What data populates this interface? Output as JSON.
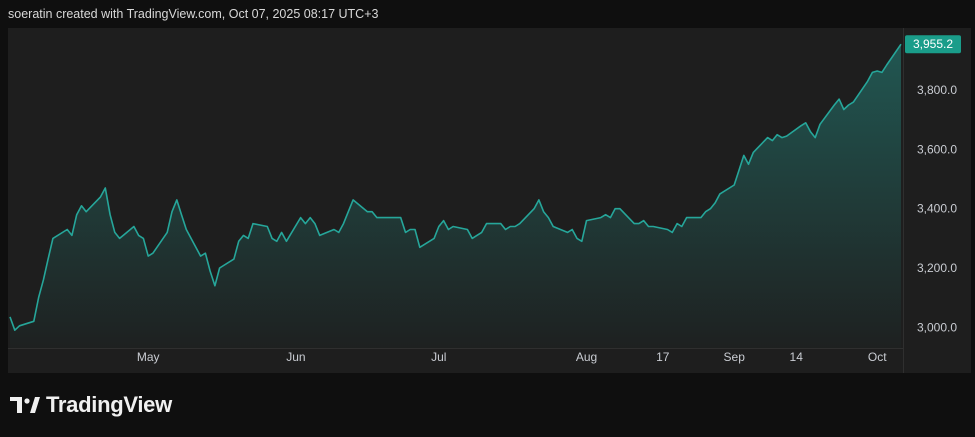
{
  "header": {
    "attribution": "soeratin created with TradingView.com, Oct 07, 2025 08:17 UTC+3"
  },
  "brand": {
    "name": "TradingView",
    "logo_icon": "tradingview-logo-icon"
  },
  "colors": {
    "line": "#26a69a",
    "price_label_bg": "#1a9d8a",
    "plot_bg": "#1e1e1e",
    "page_bg": "#0f0f0f"
  },
  "chart_data": {
    "type": "area",
    "ylim": [
      2930,
      4010
    ],
    "y_ticks": [
      {
        "value": 3000,
        "label": "3,000.0"
      },
      {
        "value": 3200,
        "label": "3,200.0"
      },
      {
        "value": 3400,
        "label": "3,400.0"
      },
      {
        "value": 3600,
        "label": "3,600.0"
      },
      {
        "value": 3800,
        "label": "3,800.0"
      }
    ],
    "x_ticks": [
      {
        "date": "2025-05-01",
        "label": "May"
      },
      {
        "date": "2025-06-01",
        "label": "Jun"
      },
      {
        "date": "2025-07-01",
        "label": "Jul"
      },
      {
        "date": "2025-08-01",
        "label": "Aug"
      },
      {
        "date": "2025-08-17",
        "label": "17"
      },
      {
        "date": "2025-09-01",
        "label": "Sep"
      },
      {
        "date": "2025-09-14",
        "label": "14"
      },
      {
        "date": "2025-10-01",
        "label": "Oct"
      }
    ],
    "last_price": {
      "value": 3955.2,
      "label": "3,955.2"
    },
    "series": [
      {
        "points": [
          [
            "2025-04-02",
            3035
          ],
          [
            "2025-04-03",
            2990
          ],
          [
            "2025-04-04",
            3005
          ],
          [
            "2025-04-07",
            3020
          ],
          [
            "2025-04-08",
            3100
          ],
          [
            "2025-04-09",
            3160
          ],
          [
            "2025-04-10",
            3230
          ],
          [
            "2025-04-11",
            3300
          ],
          [
            "2025-04-14",
            3330
          ],
          [
            "2025-04-15",
            3310
          ],
          [
            "2025-04-16",
            3380
          ],
          [
            "2025-04-17",
            3410
          ],
          [
            "2025-04-18",
            3390
          ],
          [
            "2025-04-21",
            3440
          ],
          [
            "2025-04-22",
            3470
          ],
          [
            "2025-04-23",
            3380
          ],
          [
            "2025-04-24",
            3320
          ],
          [
            "2025-04-25",
            3300
          ],
          [
            "2025-04-28",
            3340
          ],
          [
            "2025-04-29",
            3310
          ],
          [
            "2025-04-30",
            3300
          ],
          [
            "2025-05-01",
            3240
          ],
          [
            "2025-05-02",
            3250
          ],
          [
            "2025-05-05",
            3320
          ],
          [
            "2025-05-06",
            3390
          ],
          [
            "2025-05-07",
            3430
          ],
          [
            "2025-05-08",
            3380
          ],
          [
            "2025-05-09",
            3330
          ],
          [
            "2025-05-12",
            3240
          ],
          [
            "2025-05-13",
            3250
          ],
          [
            "2025-05-14",
            3190
          ],
          [
            "2025-05-15",
            3140
          ],
          [
            "2025-05-16",
            3200
          ],
          [
            "2025-05-19",
            3230
          ],
          [
            "2025-05-20",
            3290
          ],
          [
            "2025-05-21",
            3310
          ],
          [
            "2025-05-22",
            3300
          ],
          [
            "2025-05-23",
            3350
          ],
          [
            "2025-05-26",
            3340
          ],
          [
            "2025-05-27",
            3300
          ],
          [
            "2025-05-28",
            3290
          ],
          [
            "2025-05-29",
            3320
          ],
          [
            "2025-05-30",
            3290
          ],
          [
            "2025-06-02",
            3370
          ],
          [
            "2025-06-03",
            3350
          ],
          [
            "2025-06-04",
            3370
          ],
          [
            "2025-06-05",
            3350
          ],
          [
            "2025-06-06",
            3310
          ],
          [
            "2025-06-09",
            3330
          ],
          [
            "2025-06-10",
            3320
          ],
          [
            "2025-06-11",
            3350
          ],
          [
            "2025-06-12",
            3390
          ],
          [
            "2025-06-13",
            3430
          ],
          [
            "2025-06-16",
            3390
          ],
          [
            "2025-06-17",
            3390
          ],
          [
            "2025-06-18",
            3370
          ],
          [
            "2025-06-19",
            3370
          ],
          [
            "2025-06-20",
            3370
          ],
          [
            "2025-06-23",
            3370
          ],
          [
            "2025-06-24",
            3320
          ],
          [
            "2025-06-25",
            3330
          ],
          [
            "2025-06-26",
            3330
          ],
          [
            "2025-06-27",
            3270
          ],
          [
            "2025-06-30",
            3300
          ],
          [
            "2025-07-01",
            3340
          ],
          [
            "2025-07-02",
            3360
          ],
          [
            "2025-07-03",
            3330
          ],
          [
            "2025-07-04",
            3340
          ],
          [
            "2025-07-07",
            3330
          ],
          [
            "2025-07-08",
            3300
          ],
          [
            "2025-07-09",
            3310
          ],
          [
            "2025-07-10",
            3320
          ],
          [
            "2025-07-11",
            3350
          ],
          [
            "2025-07-14",
            3350
          ],
          [
            "2025-07-15",
            3330
          ],
          [
            "2025-07-16",
            3340
          ],
          [
            "2025-07-17",
            3340
          ],
          [
            "2025-07-18",
            3350
          ],
          [
            "2025-07-21",
            3400
          ],
          [
            "2025-07-22",
            3430
          ],
          [
            "2025-07-23",
            3390
          ],
          [
            "2025-07-24",
            3370
          ],
          [
            "2025-07-25",
            3340
          ],
          [
            "2025-07-28",
            3320
          ],
          [
            "2025-07-29",
            3330
          ],
          [
            "2025-07-30",
            3300
          ],
          [
            "2025-07-31",
            3290
          ],
          [
            "2025-08-01",
            3360
          ],
          [
            "2025-08-04",
            3370
          ],
          [
            "2025-08-05",
            3380
          ],
          [
            "2025-08-06",
            3370
          ],
          [
            "2025-08-07",
            3400
          ],
          [
            "2025-08-08",
            3400
          ],
          [
            "2025-08-11",
            3350
          ],
          [
            "2025-08-12",
            3350
          ],
          [
            "2025-08-13",
            3360
          ],
          [
            "2025-08-14",
            3340
          ],
          [
            "2025-08-15",
            3340
          ],
          [
            "2025-08-18",
            3330
          ],
          [
            "2025-08-19",
            3320
          ],
          [
            "2025-08-20",
            3350
          ],
          [
            "2025-08-21",
            3340
          ],
          [
            "2025-08-22",
            3370
          ],
          [
            "2025-08-25",
            3370
          ],
          [
            "2025-08-26",
            3390
          ],
          [
            "2025-08-27",
            3400
          ],
          [
            "2025-08-28",
            3420
          ],
          [
            "2025-08-29",
            3450
          ],
          [
            "2025-09-01",
            3480
          ],
          [
            "2025-09-02",
            3530
          ],
          [
            "2025-09-03",
            3580
          ],
          [
            "2025-09-04",
            3550
          ],
          [
            "2025-09-05",
            3590
          ],
          [
            "2025-09-08",
            3640
          ],
          [
            "2025-09-09",
            3630
          ],
          [
            "2025-09-10",
            3650
          ],
          [
            "2025-09-11",
            3640
          ],
          [
            "2025-09-12",
            3645
          ],
          [
            "2025-09-15",
            3680
          ],
          [
            "2025-09-16",
            3690
          ],
          [
            "2025-09-17",
            3660
          ],
          [
            "2025-09-18",
            3640
          ],
          [
            "2025-09-19",
            3685
          ],
          [
            "2025-09-22",
            3750
          ],
          [
            "2025-09-23",
            3770
          ],
          [
            "2025-09-24",
            3735
          ],
          [
            "2025-09-25",
            3750
          ],
          [
            "2025-09-26",
            3760
          ],
          [
            "2025-09-29",
            3830
          ],
          [
            "2025-09-30",
            3860
          ],
          [
            "2025-10-01",
            3865
          ],
          [
            "2025-10-02",
            3860
          ],
          [
            "2025-10-03",
            3885
          ],
          [
            "2025-10-06",
            3955.2
          ]
        ]
      }
    ]
  }
}
